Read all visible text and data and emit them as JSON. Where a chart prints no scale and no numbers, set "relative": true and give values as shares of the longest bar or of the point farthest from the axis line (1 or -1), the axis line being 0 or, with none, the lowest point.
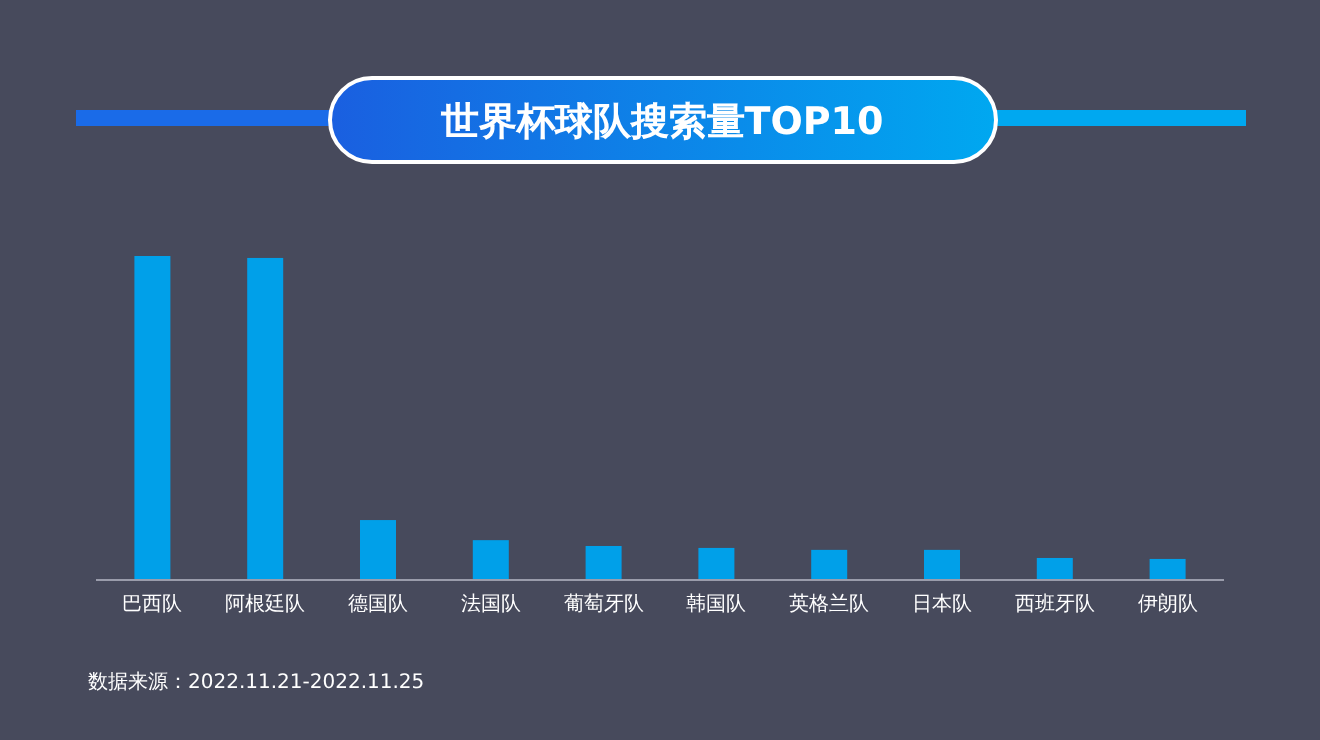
{
  "chart_data": {
    "type": "bar",
    "title": "世界杯球队搜索量TOP10",
    "relative": true,
    "color": "#00a0e9",
    "categories": [
      "巴西队",
      "阿根廷队",
      "德国队",
      "法国队",
      "葡萄牙队",
      "韩国队",
      "英格兰队",
      "日本队",
      "西班牙队",
      "伊朗队"
    ],
    "values": [
      1,
      0.994,
      0.185,
      0.123,
      0.105,
      0.099,
      0.093,
      0.093,
      0.068,
      0.065
    ],
    "annotations": [
      "数据来源：2022.11.21-2022.11.25"
    ]
  }
}
